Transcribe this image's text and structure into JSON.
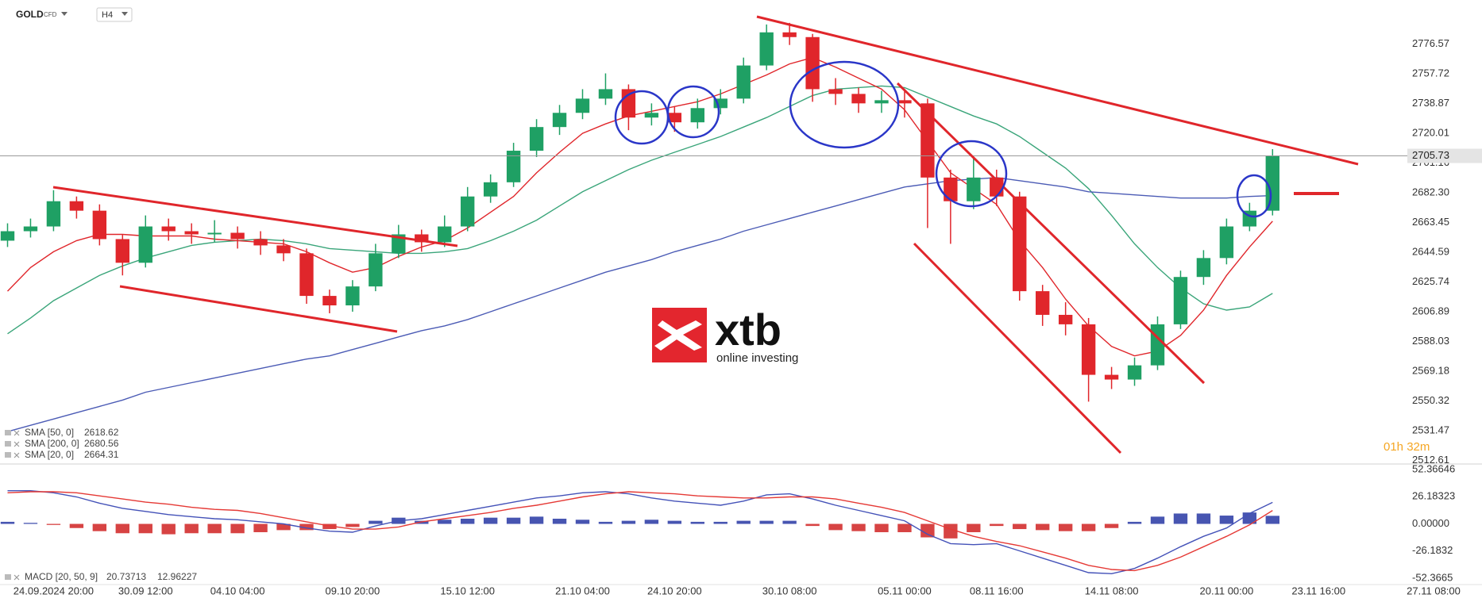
{
  "header": {
    "symbol": "GOLD",
    "instrument_type": "CFD",
    "timeframe": "H4"
  },
  "logo": {
    "brand": "xtb",
    "tagline": "online investing"
  },
  "countdown": "01h 32m",
  "chart_data": [
    {
      "type": "candlestick",
      "categories": [
        null,
        null,
        "24.09.2024 20:00",
        null,
        null,
        null,
        "30.09 12:00",
        null,
        null,
        null,
        "04.10 04:00",
        null,
        null,
        null,
        null,
        "09.10 20:00",
        null,
        null,
        null,
        null,
        "15.10 12:00",
        null,
        null,
        null,
        null,
        "21.10 04:00",
        null,
        null,
        null,
        "24.10 20:00",
        null,
        null,
        null,
        null,
        "30.10 08:00",
        null,
        null,
        null,
        null,
        "05.11 00:00",
        null,
        null,
        null,
        "08.11 16:00",
        null,
        null,
        null,
        null,
        "14.11 08:00",
        null,
        null,
        null,
        null,
        "20.11 00:00",
        null,
        null,
        null,
        "23.11 16:00",
        null,
        null,
        null,
        null,
        "27.11 08:00"
      ],
      "open": [
        2652,
        2658,
        2661,
        2677,
        2671,
        2653,
        2638,
        2661,
        2658,
        2656,
        2657,
        2653,
        2649,
        2644,
        2617,
        2611,
        2623,
        2644,
        2656,
        2651,
        2661,
        2680,
        2689,
        2709,
        2724,
        2733,
        2742,
        2748,
        2730,
        2733,
        2727,
        2736,
        2742,
        2763,
        2784,
        2781,
        2748,
        2745,
        2739,
        2741,
        2739,
        2692,
        2677,
        2692,
        2680,
        2620,
        2605,
        2599,
        2567,
        2564,
        2573,
        2599,
        2629,
        2641,
        2661,
        2671,
        null,
        null,
        null,
        null,
        null,
        null,
        null
      ],
      "high": [
        2663,
        2666,
        2684,
        2680,
        2675,
        2656,
        2668,
        2666,
        2663,
        2665,
        2661,
        2658,
        2653,
        2647,
        2621,
        2627,
        2650,
        2662,
        2659,
        2668,
        2686,
        2694,
        2714,
        2729,
        2738,
        2748,
        2758,
        2751,
        2739,
        2737,
        2742,
        2748,
        2768,
        2789,
        2790,
        2783,
        2755,
        2749,
        2747,
        2748,
        2742,
        2697,
        2704,
        2697,
        2683,
        2624,
        2613,
        2603,
        2572,
        2578,
        2604,
        2633,
        2646,
        2666,
        2676,
        2710,
        null,
        null,
        null,
        null,
        null,
        null,
        null
      ],
      "low": [
        2648,
        2654,
        2658,
        2666,
        2649,
        2630,
        2635,
        2652,
        2650,
        2651,
        2647,
        2643,
        2639,
        2612,
        2606,
        2607,
        2620,
        2641,
        2645,
        2648,
        2658,
        2676,
        2686,
        2705,
        2719,
        2729,
        2738,
        2722,
        2725,
        2721,
        2723,
        2732,
        2739,
        2760,
        2776,
        2740,
        2738,
        2733,
        2733,
        2730,
        2660,
        2650,
        2672,
        2674,
        2614,
        2598,
        2592,
        2550,
        2558,
        2560,
        2570,
        2596,
        2624,
        2637,
        2658,
        2668,
        null,
        null,
        null,
        null,
        null,
        null,
        null
      ],
      "close": [
        2658,
        2661,
        2677,
        2671,
        2653,
        2638,
        2661,
        2658,
        2656,
        2657,
        2653,
        2649,
        2644,
        2617,
        2611,
        2623,
        2644,
        2656,
        2651,
        2661,
        2680,
        2689,
        2709,
        2724,
        2733,
        2742,
        2748,
        2730,
        2733,
        2727,
        2736,
        2742,
        2763,
        2784,
        2781,
        2748,
        2745,
        2739,
        2741,
        2739,
        2692,
        2677,
        2692,
        2680,
        2620,
        2605,
        2599,
        2567,
        2564,
        2573,
        2599,
        2629,
        2641,
        2661,
        2671,
        2705.73,
        null,
        null,
        null,
        null,
        null,
        null,
        null
      ],
      "up_color": "#1fa064",
      "down_color": "#e0262b",
      "series": [
        {
          "name": "SMA [50, 0]",
          "color": "#3aa57a",
          "values": [
            2593,
            2603,
            2614,
            2622,
            2630,
            2636,
            2641,
            2645,
            2649,
            2651,
            2652,
            2653,
            2652,
            2650,
            2647,
            2646,
            2645,
            2644,
            2644,
            2645,
            2647,
            2652,
            2658,
            2665,
            2674,
            2683,
            2690,
            2697,
            2703,
            2708,
            2713,
            2718,
            2724,
            2730,
            2737,
            2744,
            2748,
            2749,
            2750,
            2749,
            2743,
            2737,
            2731,
            2726,
            2718,
            2708,
            2698,
            2685,
            2668,
            2650,
            2635,
            2622,
            2612,
            2608,
            2610,
            2618.62,
            null,
            null,
            null,
            null,
            null,
            null,
            null
          ]
        },
        {
          "name": "SMA [200, 0]",
          "color": "#4b5bb5",
          "values": [
            2531,
            2535,
            2539,
            2543,
            2547,
            2551,
            2556,
            2559,
            2562,
            2565,
            2568,
            2571,
            2574,
            2577,
            2579,
            2583,
            2587,
            2591,
            2595,
            2598,
            2602,
            2607,
            2612,
            2617,
            2622,
            2627,
            2632,
            2636,
            2640,
            2645,
            2649,
            2653,
            2658,
            2662,
            2666,
            2670,
            2674,
            2678,
            2682,
            2686,
            2688,
            2690,
            2691,
            2692,
            2690,
            2688,
            2686,
            2683,
            2682,
            2681,
            2680,
            2679,
            2679,
            2679,
            2680,
            2680.56,
            null,
            null,
            null,
            null,
            null,
            null,
            null
          ]
        },
        {
          "name": "SMA [20, 0]",
          "color": "#e0262b",
          "values": [
            2620,
            2635,
            2645,
            2652,
            2656,
            2656,
            2655,
            2655,
            2655,
            2653,
            2652,
            2651,
            2650,
            2645,
            2638,
            2632,
            2635,
            2642,
            2648,
            2652,
            2660,
            2670,
            2680,
            2695,
            2708,
            2720,
            2726,
            2731,
            2734,
            2737,
            2740,
            2745,
            2751,
            2757,
            2764,
            2768,
            2762,
            2755,
            2748,
            2735,
            2715,
            2695,
            2685,
            2675,
            2652,
            2635,
            2615,
            2598,
            2585,
            2579,
            2582,
            2592,
            2608,
            2630,
            2648,
            2664.31,
            null,
            null,
            null,
            null,
            null,
            null,
            null
          ]
        }
      ],
      "ylim": [
        2511,
        2804.5
      ],
      "yticks": [
        2512.61,
        2531.47,
        2550.32,
        2569.18,
        2588.03,
        2606.89,
        2625.74,
        2644.59,
        2663.45,
        {
          "value": 2682.3,
          "label": "2682.30"
        },
        2701.16,
        2720.01,
        2738.87,
        2757.72,
        2776.57
      ],
      "grid": false,
      "last_price_line": true
    },
    {
      "type": "macd",
      "label": "MACD [20, 50, 9]",
      "series": [
        {
          "color": "#4452b8",
          "values": [
            32,
            32,
            30,
            26,
            20,
            15,
            12,
            9,
            7,
            5,
            4,
            2,
            0,
            -4,
            -7,
            -8,
            -2,
            3,
            5,
            9,
            13,
            17,
            21,
            25,
            27,
            30,
            31,
            29,
            25,
            22,
            20,
            18,
            22,
            28,
            29,
            24,
            18,
            13,
            8,
            3,
            -10,
            -19,
            -20,
            -19,
            -26,
            -33,
            -40,
            -47,
            -48,
            -43,
            -33,
            -22,
            -12,
            -4,
            10,
            20.73713,
            null,
            null,
            null,
            null,
            null,
            null,
            null
          ]
        },
        {
          "color": "#e53935",
          "values": [
            30,
            31,
            31,
            30,
            27,
            24,
            21,
            19,
            16,
            14,
            13,
            10,
            6,
            2,
            -2,
            -5,
            -5,
            -3,
            2,
            5,
            8,
            11,
            15,
            18,
            22,
            26,
            29,
            31,
            30,
            29,
            27,
            26,
            25,
            25,
            26,
            26,
            24,
            20,
            16,
            11,
            3,
            -5,
            -12,
            -17,
            -21,
            -27,
            -33,
            -40,
            -44,
            -45,
            -40,
            -32,
            -22,
            -12,
            -1,
            12.96227,
            null,
            null,
            null,
            null,
            null,
            null,
            null
          ]
        }
      ],
      "histogram": {
        "up_color": "#3343a8",
        "down_color": "#d32f2f",
        "values": [
          2,
          1,
          -1,
          -4,
          -7,
          -9,
          -9,
          -10,
          -9,
          -9,
          -9,
          -8,
          -6,
          -6,
          -5,
          -3,
          3,
          6,
          3,
          4,
          5,
          6,
          6,
          7,
          5,
          4,
          2,
          3,
          4,
          3,
          2,
          2,
          3,
          3,
          3,
          -2,
          -6,
          -7,
          -8,
          -8,
          -13,
          -14,
          -8,
          -2,
          -5,
          -6,
          -7,
          -7,
          -4,
          2,
          7,
          10,
          10,
          8,
          11,
          7.78,
          null,
          null,
          null,
          null,
          null,
          null,
          null
        ]
      },
      "ylim": [
        -58.5,
        57
      ],
      "yticks": [
        -52.3665,
        -26.1832,
        {
          "value": 0,
          "label": "0.00000"
        },
        26.18323,
        52.36646
      ]
    }
  ]
}
